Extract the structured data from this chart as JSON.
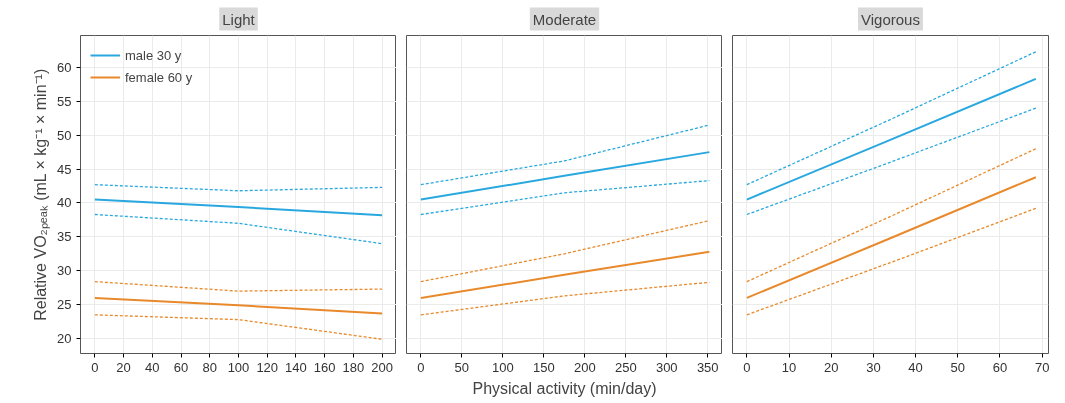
{
  "chart_data": [
    {
      "type": "line",
      "title": "Light",
      "ylabel": "Relative VO₂ₚₑₐₖ (mL × kg⁻¹ × min⁻¹)",
      "xlim": [
        -10,
        210
      ],
      "ylim": [
        17.8,
        64.7
      ],
      "xticks": [
        0,
        20,
        40,
        60,
        80,
        100,
        120,
        140,
        160,
        180,
        200
      ],
      "yticks": [
        20,
        25,
        30,
        35,
        40,
        45,
        50,
        55,
        60
      ],
      "grid": true,
      "legend": "top left",
      "series": [
        {
          "name": "male 30 y",
          "color": "#29a8df",
          "line_style": "solid",
          "x": [
            0,
            100,
            200
          ],
          "values": [
            40.5,
            39.4,
            38.2
          ]
        },
        {
          "name": "female 60 y",
          "color": "#e8892b",
          "line_style": "solid",
          "x": [
            0,
            100,
            200
          ],
          "values": [
            26.0,
            24.9,
            23.7
          ]
        },
        {
          "color": "#29a8df",
          "line_style": "dashed",
          "x": [
            0,
            100,
            200
          ],
          "values": [
            38.3,
            37.0,
            34.0
          ]
        },
        {
          "color": "#29a8df",
          "line_style": "dashed",
          "x": [
            0,
            100,
            200
          ],
          "values": [
            42.7,
            41.8,
            42.3
          ]
        },
        {
          "color": "#e8892b",
          "line_style": "dashed",
          "x": [
            0,
            100,
            200
          ],
          "values": [
            23.5,
            22.8,
            19.9
          ]
        },
        {
          "color": "#e8892b",
          "line_style": "dashed",
          "x": [
            0,
            100,
            200
          ],
          "values": [
            28.4,
            27.0,
            27.3
          ]
        }
      ]
    },
    {
      "type": "line",
      "title": "Moderate",
      "xlabel": "Physical activity (min/day)",
      "xlim": [
        -17.5,
        368
      ],
      "ylim": [
        17.8,
        64.7
      ],
      "xticks": [
        0,
        50,
        100,
        150,
        200,
        250,
        300,
        350
      ],
      "yticks": [
        20,
        25,
        30,
        35,
        40,
        45,
        50,
        55,
        60
      ],
      "grid": true,
      "tick_labels": "x",
      "series": [
        {
          "color": "#29a8df",
          "line_style": "solid",
          "x": [
            0,
            175,
            352
          ],
          "values": [
            40.5,
            44.0,
            47.5
          ]
        },
        {
          "color": "#e8892b",
          "line_style": "solid",
          "x": [
            0,
            175,
            352
          ],
          "values": [
            26.0,
            29.4,
            32.8
          ]
        },
        {
          "color": "#29a8df",
          "line_style": "dashed",
          "x": [
            0,
            175,
            352
          ],
          "values": [
            38.3,
            41.5,
            43.3
          ]
        },
        {
          "color": "#29a8df",
          "line_style": "dashed",
          "x": [
            0,
            175,
            352
          ],
          "values": [
            42.7,
            46.2,
            51.5
          ]
        },
        {
          "color": "#e8892b",
          "line_style": "dashed",
          "x": [
            0,
            175,
            352
          ],
          "values": [
            23.5,
            26.3,
            28.3
          ]
        },
        {
          "color": "#e8892b",
          "line_style": "dashed",
          "x": [
            0,
            175,
            352
          ],
          "values": [
            28.4,
            32.5,
            37.4
          ]
        }
      ]
    },
    {
      "type": "line",
      "title": "Vigorous",
      "xlim": [
        -3.4,
        71.5
      ],
      "ylim": [
        17.8,
        64.7
      ],
      "xticks": [
        0,
        10,
        20,
        30,
        40,
        50,
        60,
        70
      ],
      "yticks": [
        20,
        25,
        30,
        35,
        40,
        45,
        50,
        55,
        60
      ],
      "grid": true,
      "tick_labels": "x",
      "series": [
        {
          "color": "#29a8df",
          "line_style": "solid",
          "x": [
            0,
            34,
            68.5
          ],
          "values": [
            40.5,
            49.3,
            58.3
          ]
        },
        {
          "color": "#e8892b",
          "line_style": "solid",
          "x": [
            0,
            34,
            68.5
          ],
          "values": [
            26.0,
            34.8,
            43.8
          ]
        },
        {
          "color": "#29a8df",
          "line_style": "dashed",
          "x": [
            0,
            34,
            68.5
          ],
          "values": [
            38.3,
            46.0,
            54.0
          ]
        },
        {
          "color": "#29a8df",
          "line_style": "dashed",
          "x": [
            0,
            34,
            68.5
          ],
          "values": [
            42.7,
            52.3,
            62.3
          ]
        },
        {
          "color": "#e8892b",
          "line_style": "dashed",
          "x": [
            0,
            34,
            68.5
          ],
          "values": [
            23.5,
            31.2,
            39.2
          ]
        },
        {
          "color": "#e8892b",
          "line_style": "dashed",
          "x": [
            0,
            34,
            68.5
          ],
          "values": [
            28.4,
            38.0,
            48.0
          ]
        }
      ]
    }
  ]
}
